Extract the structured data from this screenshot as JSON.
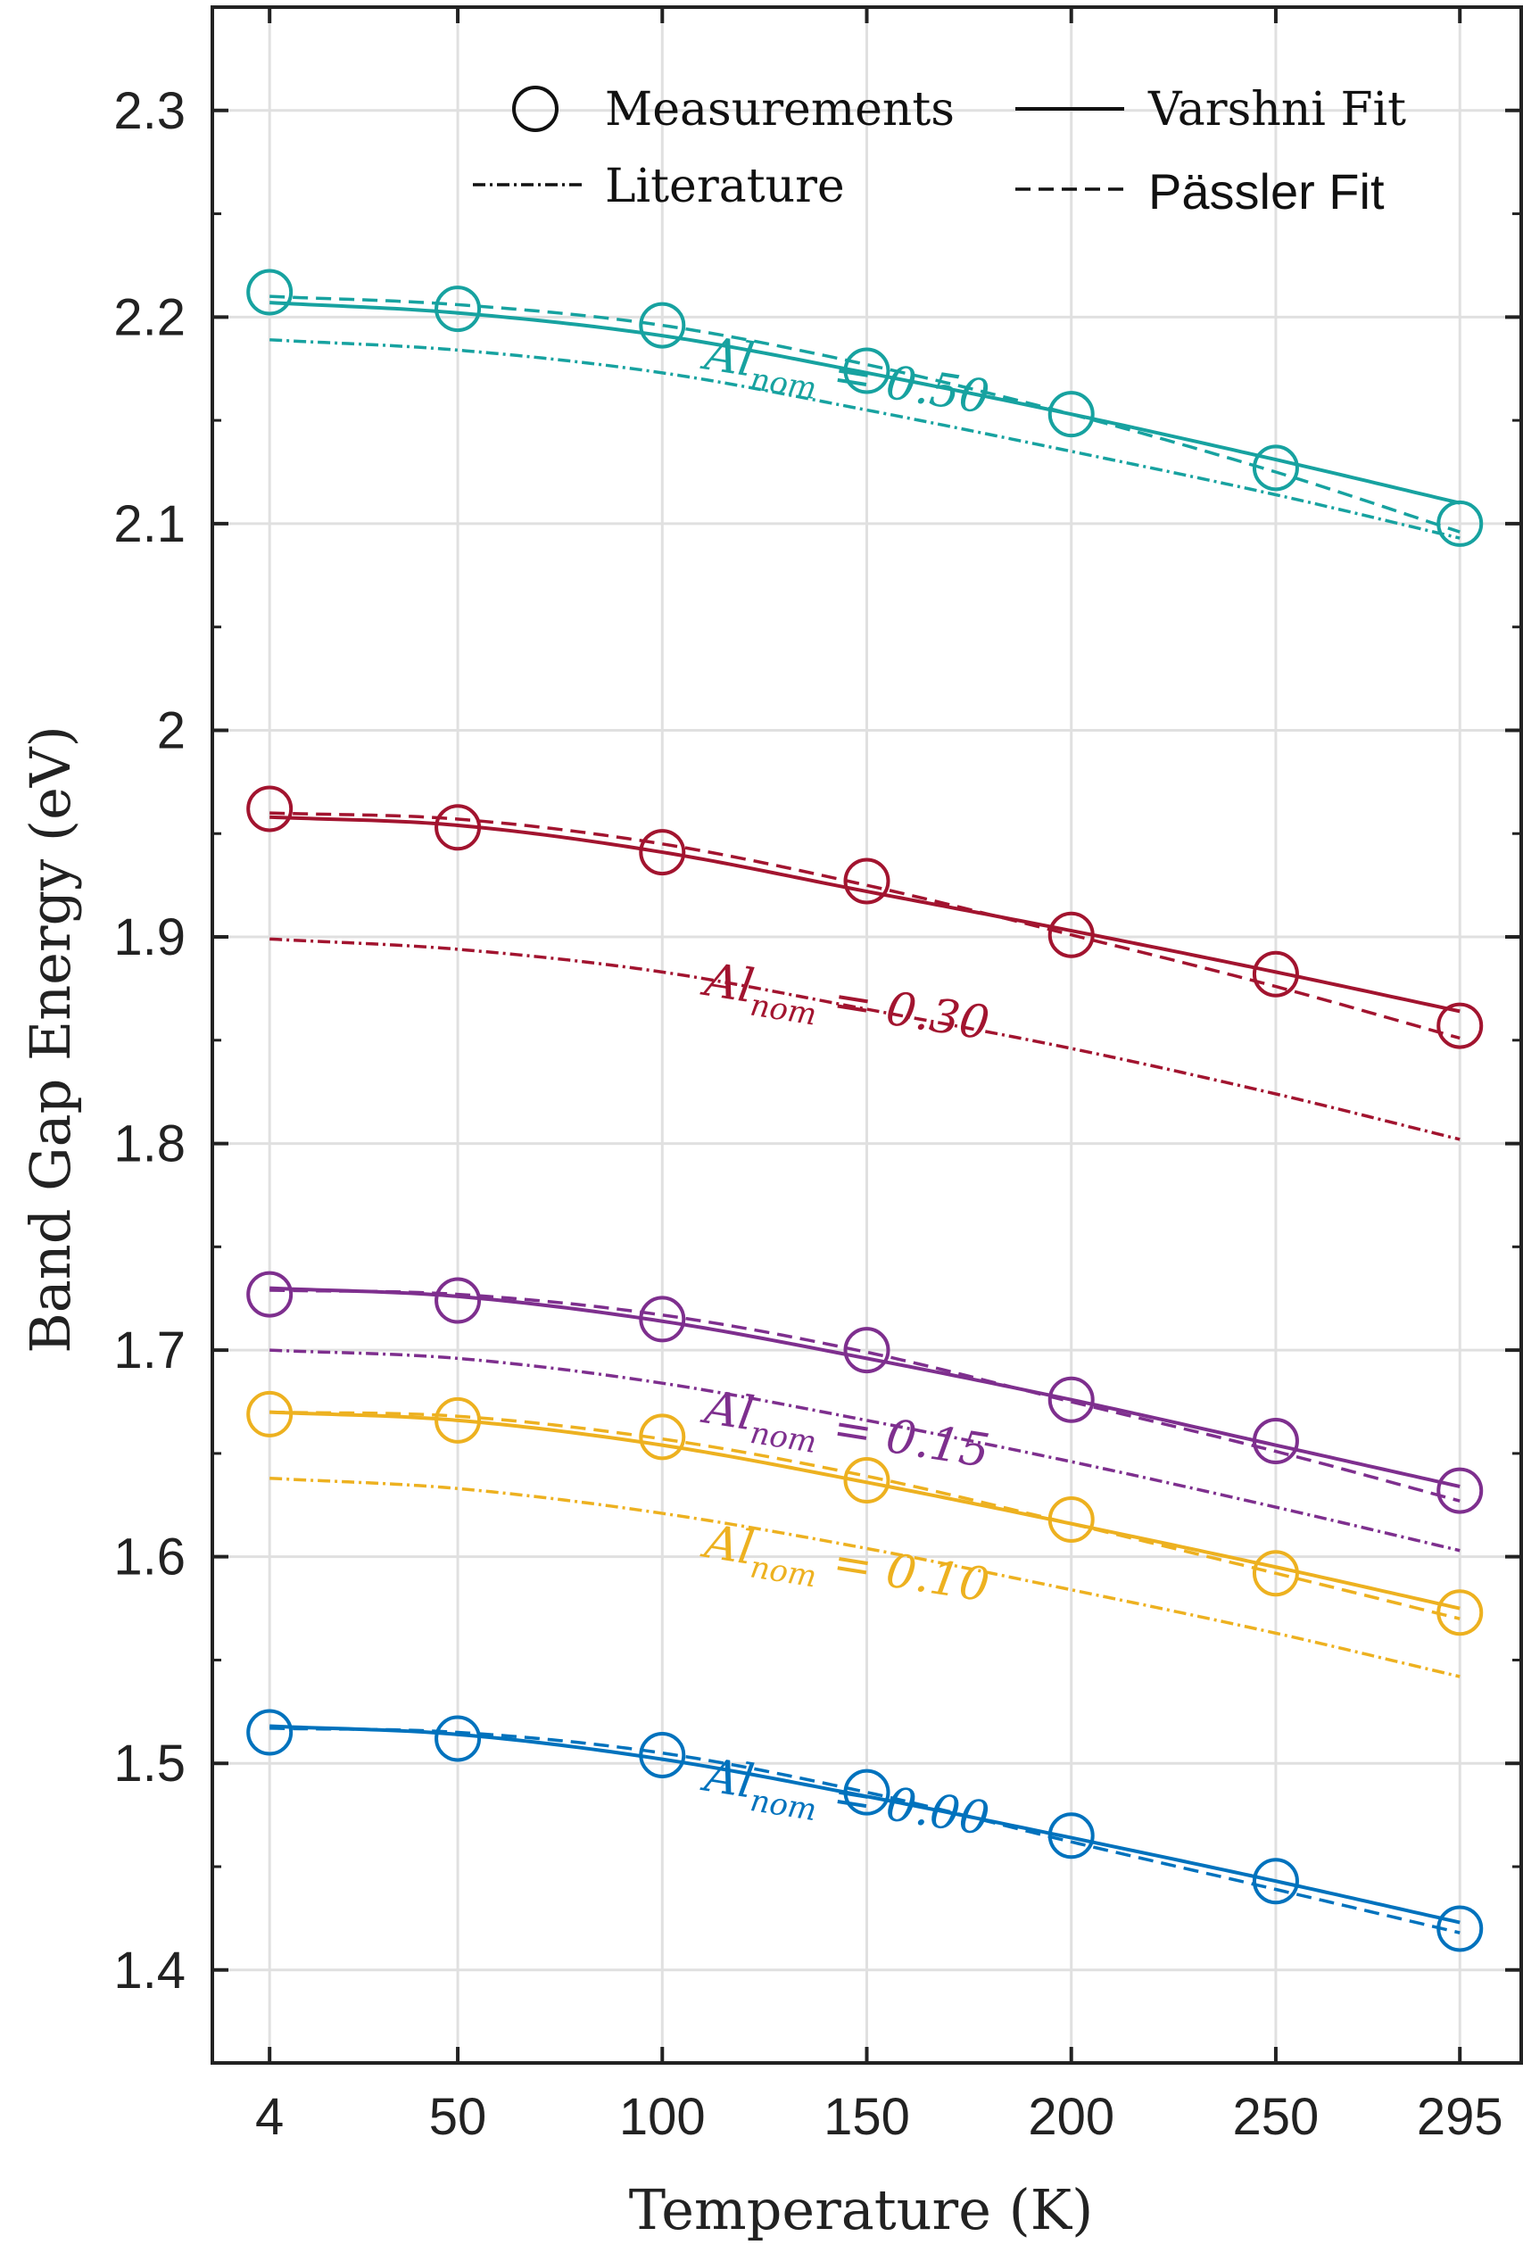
{
  "chart_data": {
    "type": "line",
    "xlabel": "Temperature (K)",
    "ylabel": "Band Gap Energy (eV)",
    "xlim": [
      -10,
      310
    ],
    "ylim": [
      1.355,
      2.35
    ],
    "grid": true,
    "x_ticks": [
      4,
      50,
      100,
      150,
      200,
      250,
      295
    ],
    "x_tick_labels": [
      "4",
      "50",
      "100",
      "150",
      "200",
      "250",
      "295"
    ],
    "y_ticks": [
      1.4,
      1.5,
      1.6,
      1.7,
      1.8,
      1.9,
      2.0,
      2.1,
      2.2,
      2.3
    ],
    "y_tick_labels": [
      "1.4",
      "1.5",
      "1.6",
      "1.7",
      "1.8",
      "1.9",
      "2",
      "2.1",
      "2.2",
      "2.3"
    ],
    "legend": {
      "placement": "top",
      "entries": [
        {
          "label": "Measurements",
          "style": "circle"
        },
        {
          "label": "Varshni Fit",
          "style": "solid"
        },
        {
          "label": "Literature",
          "style": "dashdot"
        },
        {
          "label": "Pässler Fit",
          "style": "dashed"
        }
      ]
    },
    "x": [
      4,
      50,
      100,
      150,
      200,
      250,
      295
    ],
    "series": [
      {
        "al_value": "0.50",
        "color": "#17a2a0",
        "measurements": [
          2.212,
          2.204,
          2.196,
          2.174,
          2.153,
          2.127,
          2.1
        ],
        "varshni": [
          2.207,
          2.202,
          2.191,
          2.173,
          2.153,
          2.131,
          2.11
        ],
        "passler": [
          2.21,
          2.206,
          2.196,
          2.177,
          2.153,
          2.125,
          2.096
        ],
        "literature": [
          2.189,
          2.184,
          2.173,
          2.155,
          2.135,
          2.114,
          2.093
        ]
      },
      {
        "al_value": "0.30",
        "color": "#a2142f",
        "measurements": [
          1.962,
          1.953,
          1.941,
          1.927,
          1.901,
          1.882,
          1.857
        ],
        "varshni": [
          1.958,
          1.954,
          1.941,
          1.922,
          1.903,
          1.883,
          1.864
        ],
        "passler": [
          1.96,
          1.957,
          1.945,
          1.925,
          1.901,
          1.876,
          1.851
        ],
        "literature": [
          1.899,
          1.894,
          1.883,
          1.865,
          1.846,
          1.824,
          1.802
        ]
      },
      {
        "al_value": "0.15",
        "color": "#7e2f8e",
        "measurements": [
          1.727,
          1.724,
          1.715,
          1.7,
          1.676,
          1.656,
          1.632
        ],
        "varshni": [
          1.73,
          1.726,
          1.714,
          1.696,
          1.676,
          1.654,
          1.634
        ],
        "passler": [
          1.729,
          1.727,
          1.717,
          1.699,
          1.675,
          1.651,
          1.627
        ],
        "literature": [
          1.7,
          1.696,
          1.684,
          1.666,
          1.646,
          1.624,
          1.603
        ]
      },
      {
        "al_value": "0.10",
        "color": "#edb120",
        "measurements": [
          1.669,
          1.666,
          1.658,
          1.637,
          1.618,
          1.592,
          1.573
        ],
        "varshni": [
          1.67,
          1.666,
          1.654,
          1.636,
          1.616,
          1.595,
          1.575
        ],
        "passler": [
          1.67,
          1.668,
          1.657,
          1.639,
          1.616,
          1.592,
          1.57
        ],
        "literature": [
          1.638,
          1.633,
          1.621,
          1.604,
          1.584,
          1.563,
          1.542
        ]
      },
      {
        "al_value": "0.00",
        "color": "#0072bd",
        "measurements": [
          1.515,
          1.512,
          1.504,
          1.486,
          1.465,
          1.443,
          1.42
        ],
        "varshni": [
          1.518,
          1.514,
          1.502,
          1.484,
          1.464,
          1.443,
          1.423
        ],
        "passler": [
          1.517,
          1.515,
          1.505,
          1.486,
          1.462,
          1.439,
          1.418
        ],
        "literature": null
      }
    ],
    "annotations": [
      {
        "prefix": "Al",
        "subscript": "nom",
        "value_text": " = 0.50",
        "color": "#17a2a0",
        "x": 110,
        "y": 2.175
      },
      {
        "prefix": "Al",
        "subscript": "nom",
        "value_text": " = 0.30",
        "color": "#a2142f",
        "x": 110,
        "y": 1.872
      },
      {
        "prefix": "Al",
        "subscript": "nom",
        "value_text": " = 0.15",
        "color": "#7e2f8e",
        "x": 110,
        "y": 1.665
      },
      {
        "prefix": "Al",
        "subscript": "nom",
        "value_text": " = 0.10",
        "color": "#edb120",
        "x": 110,
        "y": 1.6
      },
      {
        "prefix": "Al",
        "subscript": "nom",
        "value_text": " = 0.00",
        "color": "#0072bd",
        "x": 110,
        "y": 1.487
      }
    ]
  }
}
